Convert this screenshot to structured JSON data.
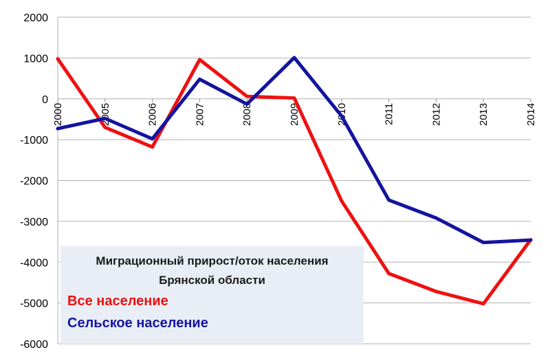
{
  "chart_data": {
    "type": "line",
    "x": [
      "2000",
      "2005",
      "2006",
      "2007",
      "2008",
      "2009",
      "2010",
      "2011",
      "2012",
      "2013",
      "2014"
    ],
    "ylim": [
      -6000,
      2000
    ],
    "yticks": [
      2000,
      1000,
      0,
      -1000,
      -2000,
      -3000,
      -4000,
      -5000,
      -6000
    ],
    "grid": true,
    "legend_position": "bottom-left",
    "legend_title_line1": "Миграционный прирост/оток населения",
    "legend_title_line2": "Брянской области",
    "series": [
      {
        "name": "Все население",
        "color": "#ee1111",
        "values": [
          980,
          -700,
          -1180,
          960,
          60,
          20,
          -2500,
          -4280,
          -4720,
          -5020,
          -3450
        ]
      },
      {
        "name": "Сельское население",
        "color": "#1414a0",
        "values": [
          -730,
          -480,
          -980,
          480,
          -130,
          1010,
          -420,
          -2480,
          -2920,
          -3520,
          -3460
        ]
      }
    ]
  }
}
